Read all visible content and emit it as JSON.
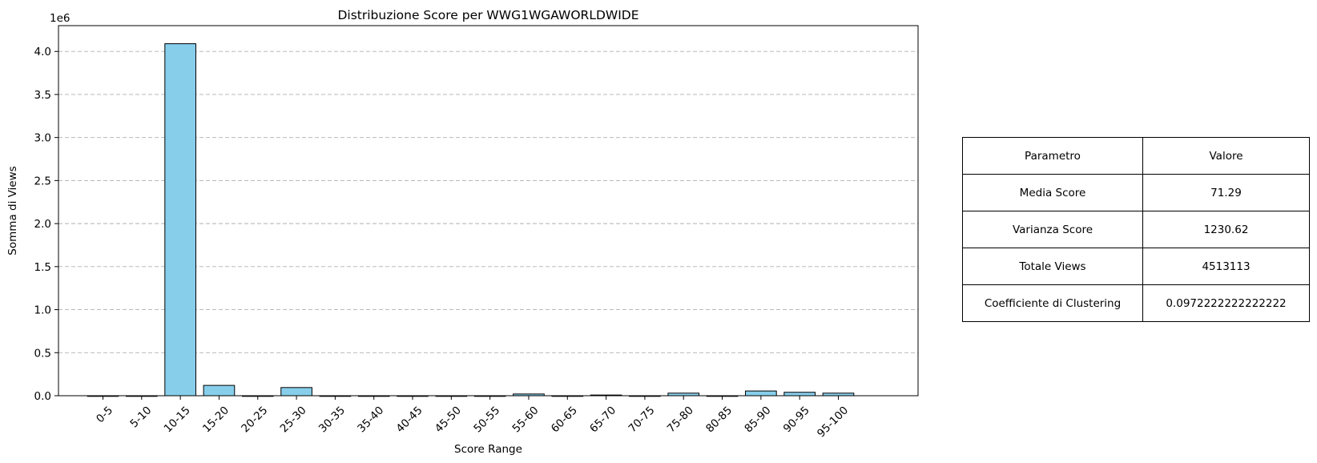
{
  "chart_data": {
    "type": "bar",
    "title": "Distribuzione Score per WWG1WGAWORLDWIDE",
    "xlabel": "Score Range",
    "ylabel": "Somma di Views",
    "y_offset_label": "1e6",
    "y_multiplier": 1000000,
    "ylim": [
      0,
      4300000
    ],
    "yticks": [
      0,
      500000,
      1000000,
      1500000,
      2000000,
      2500000,
      3000000,
      3500000,
      4000000
    ],
    "ytick_labels": [
      "0.0",
      "0.5",
      "1.0",
      "1.5",
      "2.0",
      "2.5",
      "3.0",
      "3.5",
      "4.0"
    ],
    "grid": "y-dashed",
    "categories": [
      "0-5",
      "5-10",
      "10-15",
      "15-20",
      "20-25",
      "25-30",
      "30-35",
      "35-40",
      "40-45",
      "45-50",
      "50-55",
      "55-60",
      "60-65",
      "65-70",
      "70-75",
      "75-80",
      "80-85",
      "85-90",
      "90-95",
      "95-100"
    ],
    "values": [
      0,
      0,
      4090000,
      120000,
      0,
      95000,
      0,
      0,
      0,
      0,
      0,
      20000,
      0,
      8000,
      0,
      30000,
      0,
      55000,
      40000,
      30000
    ],
    "bar_color": "#87ceeb",
    "edge_color": "#000000",
    "grid_color": "#b0b0b0"
  },
  "stats_table": {
    "header": {
      "param": "Parametro",
      "value": "Valore"
    },
    "rows": [
      {
        "param": "Media Score",
        "value": "71.29"
      },
      {
        "param": "Varianza Score",
        "value": "1230.62"
      },
      {
        "param": "Totale Views",
        "value": "4513113"
      },
      {
        "param": "Coefficiente di Clustering",
        "value": "0.0972222222222222"
      }
    ]
  }
}
